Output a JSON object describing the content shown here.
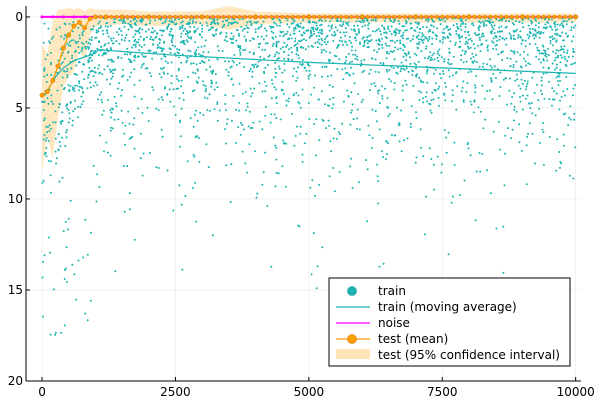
{
  "chart_data": {
    "type": "scatter",
    "title": "",
    "xlabel": "",
    "ylabel": "",
    "xlim": [
      -300,
      10100
    ],
    "ylim": [
      -20,
      0.6
    ],
    "y_axis_inverted": true,
    "xticks": [
      0,
      2500,
      5000,
      7500,
      10000
    ],
    "xtick_labels": [
      "0",
      "2500",
      "5000",
      "7500",
      "10000"
    ],
    "yticks": [
      0,
      -5,
      -10,
      -15,
      -20
    ],
    "ytick_labels": [
      "0",
      "5",
      "10",
      "15",
      "20"
    ],
    "grid": true,
    "legend_position": "bottom-right",
    "series": [
      {
        "name": "train",
        "kind": "scatter",
        "color": "#1ab5b0",
        "summary": {
          "n_points": 10000,
          "x_range": [
            0,
            10000
          ],
          "y_range": [
            -20,
            0
          ],
          "note": "dense near 0, sparse tail to -20"
        }
      },
      {
        "name": "train (moving average)",
        "kind": "line",
        "color": "#1ab5b0",
        "x": [
          0,
          50,
          150,
          250,
          400,
          600,
          800,
          1000,
          1050,
          1500,
          2500,
          5000,
          7500,
          10000
        ],
        "y": [
          -4.2,
          -4.3,
          -3.8,
          -3.3,
          -2.8,
          -2.4,
          -2.2,
          -2.0,
          -1.8,
          -1.9,
          -2.1,
          -2.5,
          -2.8,
          -3.1
        ]
      },
      {
        "name": "noise",
        "kind": "line",
        "color": "#ff00ff",
        "x": [
          0,
          10000
        ],
        "y": [
          0,
          0
        ]
      },
      {
        "name": "test (mean)",
        "kind": "line-markers",
        "color": "#ff9e00",
        "x": [
          0,
          100,
          200,
          300,
          400,
          500,
          600,
          700,
          800,
          900,
          1000,
          1200,
          1500,
          2000,
          3000,
          4000,
          5000,
          6000,
          7000,
          8000,
          9000,
          10000
        ],
        "y": [
          -4.3,
          -4.1,
          -3.5,
          -2.7,
          -1.7,
          -1.0,
          -0.5,
          -0.3,
          -0.6,
          -0.1,
          0.0,
          0.0,
          0.0,
          0.0,
          0.0,
          0.0,
          0.0,
          0.0,
          0.0,
          0.0,
          0.0,
          0.0
        ]
      },
      {
        "name": "test (95% confidence interval)",
        "kind": "band",
        "color": "#ffe4b5",
        "x": [
          0,
          100,
          200,
          300,
          400,
          500,
          600,
          700,
          800,
          900,
          1000,
          1500,
          2000,
          3000,
          3500,
          4000,
          5000,
          7500,
          10000
        ],
        "lower": [
          -8.6,
          -6.5,
          -7.8,
          -5.5,
          -3.8,
          -3.3,
          -3.0,
          -1.8,
          -2.4,
          -1.0,
          -0.5,
          -0.4,
          -0.5,
          -0.4,
          -0.7,
          -0.4,
          -0.3,
          -0.3,
          -0.3
        ],
        "upper": [
          -1.5,
          -2.0,
          -0.3,
          0.4,
          0.4,
          0.5,
          0.4,
          0.5,
          0.3,
          0.5,
          0.4,
          0.4,
          0.3,
          0.3,
          0.6,
          0.3,
          0.2,
          0.2,
          0.2
        ]
      }
    ],
    "legend": [
      {
        "label": "train",
        "symbol": "dot",
        "color": "#1ab5b0"
      },
      {
        "label": "train (moving average)",
        "symbol": "line",
        "color": "#1ab5b0"
      },
      {
        "label": "noise",
        "symbol": "line",
        "color": "#ff00ff"
      },
      {
        "label": "test (mean)",
        "symbol": "line-dot",
        "color": "#ff9e00"
      },
      {
        "label": "test (95% confidence interval)",
        "symbol": "band",
        "color": "#ffe4b5"
      }
    ]
  }
}
